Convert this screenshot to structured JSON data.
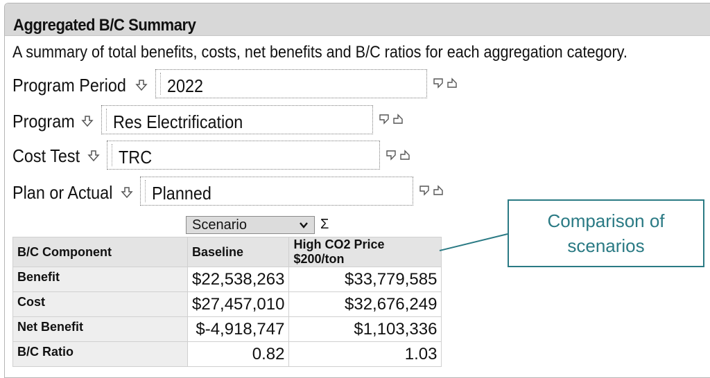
{
  "panel": {
    "title": "Aggregated B/C Summary",
    "description": "A summary of total benefits, costs, net benefits and B/C ratios for each aggregation category."
  },
  "filters": [
    {
      "label": "Program Period",
      "value": "2022"
    },
    {
      "label": "Program",
      "value": "Res Electrification"
    },
    {
      "label": "Cost Test",
      "value": "TRC"
    },
    {
      "label": "Plan or Actual",
      "value": "Planned"
    }
  ],
  "selector": {
    "selected": "Scenario",
    "sigma": "Σ"
  },
  "table": {
    "headers": [
      "B/C Component",
      "Baseline",
      "High CO2 Price $200/ton"
    ],
    "rows": [
      {
        "label": "Benefit",
        "baseline": "$22,538,263",
        "high": "$33,779,585"
      },
      {
        "label": "Cost",
        "baseline": "$27,457,010",
        "high": "$32,676,249"
      },
      {
        "label": "Net Benefit",
        "baseline": "$-4,918,747",
        "high": "$1,103,336"
      },
      {
        "label": "B/C Ratio",
        "baseline": "0.82",
        "high": "1.03"
      }
    ]
  },
  "callout": {
    "line1": "Comparison of",
    "line2": "scenarios",
    "color": "#2a7a84"
  },
  "icons": {
    "filter_arrow": "down-arrow-icon",
    "nav": [
      "drill-down-icon",
      "drill-up-icon"
    ]
  }
}
